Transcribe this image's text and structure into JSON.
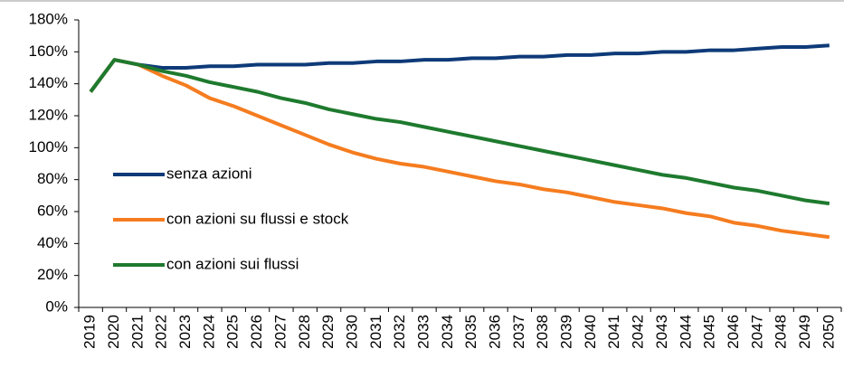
{
  "chart_data": {
    "type": "line",
    "categories": [
      "2019",
      "2020",
      "2021",
      "2022",
      "2023",
      "2024",
      "2025",
      "2026",
      "2027",
      "2028",
      "2029",
      "2030",
      "2031",
      "2032",
      "2033",
      "2034",
      "2035",
      "2036",
      "2037",
      "2038",
      "2039",
      "2040",
      "2041",
      "2042",
      "2043",
      "2044",
      "2045",
      "2046",
      "2047",
      "2048",
      "2049",
      "2050"
    ],
    "series": [
      {
        "name": "senza azioni",
        "color": "#0e3a78",
        "values": [
          135,
          155,
          152,
          150,
          150,
          151,
          151,
          152,
          152,
          152,
          153,
          153,
          154,
          154,
          155,
          155,
          156,
          156,
          157,
          157,
          158,
          158,
          159,
          159,
          160,
          160,
          161,
          161,
          162,
          163,
          163,
          164
        ]
      },
      {
        "name": "con azioni su flussi e stock",
        "color": "#f57c1f",
        "values": [
          135,
          155,
          152,
          145,
          139,
          131,
          126,
          120,
          114,
          108,
          102,
          97,
          93,
          90,
          88,
          85,
          82,
          79,
          77,
          74,
          72,
          69,
          66,
          64,
          62,
          59,
          57,
          53,
          51,
          48,
          46,
          44
        ]
      },
      {
        "name": "con azioni sui flussi",
        "color": "#1e7a2e",
        "values": [
          135,
          155,
          152,
          148,
          145,
          141,
          138,
          135,
          131,
          128,
          124,
          121,
          118,
          116,
          113,
          110,
          107,
          104,
          101,
          98,
          95,
          92,
          89,
          86,
          83,
          81,
          78,
          75,
          73,
          70,
          67,
          65
        ]
      }
    ],
    "ylim": [
      0,
      180
    ],
    "yticks": [
      {
        "value": 0,
        "label": "0%"
      },
      {
        "value": 20,
        "label": "20%"
      },
      {
        "value": 40,
        "label": "40%"
      },
      {
        "value": 60,
        "label": "60%"
      },
      {
        "value": 80,
        "label": "80%"
      },
      {
        "value": 100,
        "label": "100%"
      },
      {
        "value": 120,
        "label": "120%"
      },
      {
        "value": 140,
        "label": "140%"
      },
      {
        "value": 160,
        "label": "160%"
      },
      {
        "value": 180,
        "label": "180%"
      }
    ],
    "legend": "left"
  }
}
